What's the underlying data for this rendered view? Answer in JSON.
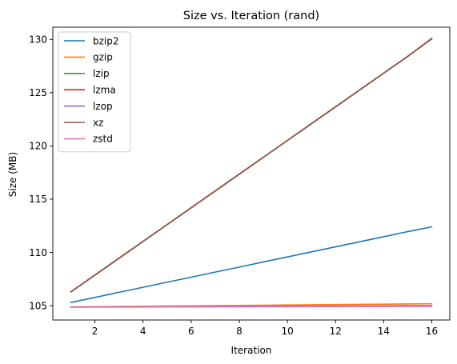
{
  "chart_data": {
    "type": "line",
    "title": "Size vs. Iteration (rand)",
    "xlabel": "Iteration",
    "ylabel": "Size (MB)",
    "xlim": [
      0.25,
      16.75
    ],
    "ylim": [
      103.65,
      131.15
    ],
    "x_ticks": [
      2,
      4,
      6,
      8,
      10,
      12,
      14,
      16
    ],
    "y_ticks": [
      105,
      110,
      115,
      120,
      125,
      130
    ],
    "grid": false,
    "legend_position": "upper left",
    "x": [
      1,
      2,
      3,
      4,
      5,
      6,
      7,
      8,
      9,
      10,
      11,
      12,
      13,
      14,
      15,
      16
    ],
    "series": [
      {
        "name": "bzip2",
        "color": "#1f77b4",
        "values": [
          105.3,
          105.77,
          106.25,
          106.72,
          107.2,
          107.67,
          108.15,
          108.62,
          109.1,
          109.57,
          110.05,
          110.52,
          111.0,
          111.47,
          111.95,
          112.4
        ]
      },
      {
        "name": "gzip",
        "color": "#ff7f0e",
        "values": [
          104.88,
          104.9,
          104.92,
          104.94,
          104.96,
          104.98,
          105.0,
          105.02,
          105.04,
          105.06,
          105.08,
          105.1,
          105.12,
          105.14,
          105.16,
          105.18
        ]
      },
      {
        "name": "lzip",
        "color": "#2ca02c",
        "values": [
          106.28,
          107.86,
          109.44,
          111.02,
          112.6,
          114.18,
          115.76,
          117.34,
          118.92,
          120.5,
          122.08,
          123.66,
          125.24,
          126.82,
          128.4,
          130.05
        ]
      },
      {
        "name": "lzma",
        "color": "#d62728",
        "values": [
          106.3,
          107.88,
          109.46,
          111.04,
          112.62,
          114.2,
          115.78,
          117.36,
          118.94,
          120.52,
          122.1,
          123.68,
          125.26,
          126.84,
          128.42,
          130.1
        ]
      },
      {
        "name": "lzop",
        "color": "#9467bd",
        "values": [
          104.86,
          104.87,
          104.88,
          104.89,
          104.9,
          104.91,
          104.92,
          104.93,
          104.94,
          104.95,
          104.96,
          104.97,
          104.98,
          104.99,
          105.0,
          105.01
        ]
      },
      {
        "name": "xz",
        "color": "#8c564b",
        "values": [
          106.29,
          107.87,
          109.45,
          111.03,
          112.61,
          114.19,
          115.77,
          117.35,
          118.93,
          120.51,
          122.09,
          123.67,
          125.25,
          126.83,
          128.41,
          130.08
        ]
      },
      {
        "name": "zstd",
        "color": "#e377c2",
        "values": [
          104.85,
          104.855,
          104.86,
          104.865,
          104.87,
          104.875,
          104.88,
          104.885,
          104.89,
          104.895,
          104.9,
          104.905,
          104.91,
          104.915,
          104.92,
          104.93
        ]
      }
    ]
  }
}
